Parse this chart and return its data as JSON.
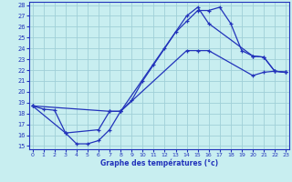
{
  "xlabel": "Graphe des températures (°c)",
  "bg_color": "#c8eef0",
  "line_color": "#2233bb",
  "grid_color": "#a0d0d8",
  "ylim": [
    14.7,
    28.3
  ],
  "xlim": [
    -0.3,
    23.3
  ],
  "yticks": [
    15,
    16,
    17,
    18,
    19,
    20,
    21,
    22,
    23,
    24,
    25,
    26,
    27,
    28
  ],
  "xticks": [
    0,
    1,
    2,
    3,
    4,
    5,
    6,
    7,
    8,
    9,
    10,
    11,
    12,
    13,
    14,
    15,
    16,
    17,
    18,
    19,
    20,
    21,
    22,
    23
  ],
  "curve1_x": [
    0,
    1,
    2,
    3,
    4,
    5,
    6,
    7,
    8,
    9,
    10,
    11,
    12,
    13,
    14,
    15,
    16,
    17,
    18,
    19,
    20,
    21,
    22,
    23
  ],
  "curve1_y": [
    18.7,
    18.4,
    18.3,
    16.2,
    15.2,
    15.2,
    15.5,
    16.5,
    18.2,
    19.2,
    21.0,
    22.5,
    24.0,
    25.5,
    26.5,
    27.5,
    27.5,
    27.8,
    26.3,
    23.8,
    23.3,
    23.2,
    21.9,
    21.8
  ],
  "curve2_x": [
    0,
    7,
    8,
    14,
    15,
    16,
    20,
    21,
    22,
    23
  ],
  "curve2_y": [
    18.7,
    18.2,
    18.2,
    23.8,
    23.8,
    23.8,
    21.5,
    21.8,
    21.9,
    21.8
  ],
  "curve3_x": [
    0,
    3,
    6,
    7,
    8,
    14,
    15,
    16,
    20,
    21,
    22,
    23
  ],
  "curve3_y": [
    18.7,
    16.2,
    16.5,
    18.2,
    18.2,
    27.0,
    27.8,
    26.3,
    23.3,
    23.2,
    21.9,
    21.8
  ]
}
